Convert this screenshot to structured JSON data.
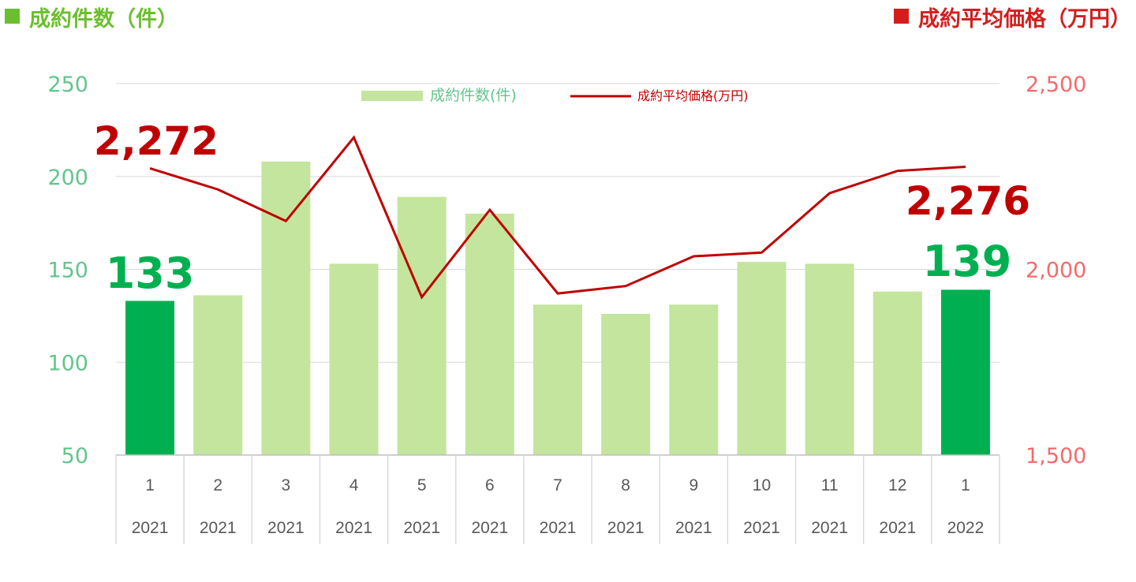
{
  "header": {
    "left_title": "成約件数（件）",
    "right_title": "成約平均価格（万円）"
  },
  "colors": {
    "bar": "#C3E59D",
    "bar_highlight": "#00B050",
    "line": "#C00000",
    "left_axis_text": "#63C58C",
    "right_axis_text": "#F36B6B",
    "header_left": "#6BBF2E",
    "header_right": "#D31E1E"
  },
  "chart_data": {
    "type": "bar",
    "title": "",
    "categories": [
      {
        "month": "1",
        "year": "2021"
      },
      {
        "month": "2",
        "year": "2021"
      },
      {
        "month": "3",
        "year": "2021"
      },
      {
        "month": "4",
        "year": "2021"
      },
      {
        "month": "5",
        "year": "2021"
      },
      {
        "month": "6",
        "year": "2021"
      },
      {
        "month": "7",
        "year": "2021"
      },
      {
        "month": "8",
        "year": "2021"
      },
      {
        "month": "9",
        "year": "2021"
      },
      {
        "month": "10",
        "year": "2021"
      },
      {
        "month": "11",
        "year": "2021"
      },
      {
        "month": "12",
        "year": "2021"
      },
      {
        "month": "1",
        "year": "2022"
      }
    ],
    "series": [
      {
        "name": "成約件数(件)",
        "type": "bar",
        "axis": "left",
        "values": [
          133,
          136,
          208,
          153,
          189,
          180,
          131,
          126,
          131,
          154,
          153,
          138,
          139
        ],
        "highlight_indices": [
          0,
          12
        ]
      },
      {
        "name": "成約平均価格(万円)",
        "type": "line",
        "axis": "right",
        "values": [
          2272,
          2215,
          2130,
          2355,
          1925,
          2160,
          1935,
          1955,
          2035,
          2045,
          2205,
          2265,
          2276
        ]
      }
    ],
    "left_axis": {
      "min": 50,
      "max": 250,
      "ticks": [
        "250",
        "200",
        "150",
        "100",
        "50"
      ]
    },
    "right_axis": {
      "min": 1500,
      "max": 2500,
      "ticks": [
        "2,500",
        "2,000",
        "1,500"
      ]
    },
    "grid": true,
    "legend_position": "top-center",
    "annotations": [
      {
        "text": "133",
        "series": 0,
        "index": 0
      },
      {
        "text": "139",
        "series": 0,
        "index": 12
      },
      {
        "text": "2,272",
        "series": 1,
        "index": 0
      },
      {
        "text": "2,276",
        "series": 1,
        "index": 12
      }
    ]
  }
}
